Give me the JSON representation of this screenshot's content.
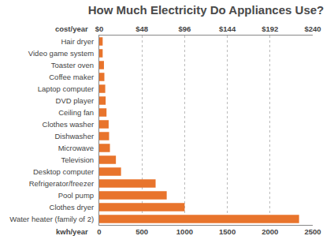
{
  "chart_data": {
    "type": "bar",
    "title": "How Much Electricity Do Appliances Use?",
    "orientation": "horizontal",
    "categories": [
      "Hair dryer",
      "Video game system",
      "Toaster oven",
      "Coffee maker",
      "Laptop computer",
      "DVD player",
      "Ceiling fan",
      "Clothes washer",
      "Dishwasher",
      "Microwave",
      "Television",
      "Desktop computer",
      "Refrigerator/freezer",
      "Pool pump",
      "Clothes dryer",
      "Water heater (family of 2)"
    ],
    "values": [
      40,
      40,
      55,
      60,
      70,
      75,
      85,
      110,
      115,
      125,
      195,
      255,
      660,
      790,
      1000,
      2340
    ],
    "color": "#e8742c",
    "xlabel": "kwh/year",
    "xlim": [
      0,
      2500
    ],
    "xticks": [
      0,
      500,
      1000,
      1500,
      2000,
      2500
    ],
    "x2label": "cost/year",
    "x2lim": [
      0,
      240
    ],
    "x2ticks": [
      {
        "value": 0,
        "label": "$0"
      },
      {
        "value": 48,
        "label": "$48"
      },
      {
        "value": 96,
        "label": "$96"
      },
      {
        "value": 144,
        "label": "$144"
      },
      {
        "value": 192,
        "label": "$192"
      },
      {
        "value": 240,
        "label": "$240"
      }
    ],
    "grid": true
  }
}
